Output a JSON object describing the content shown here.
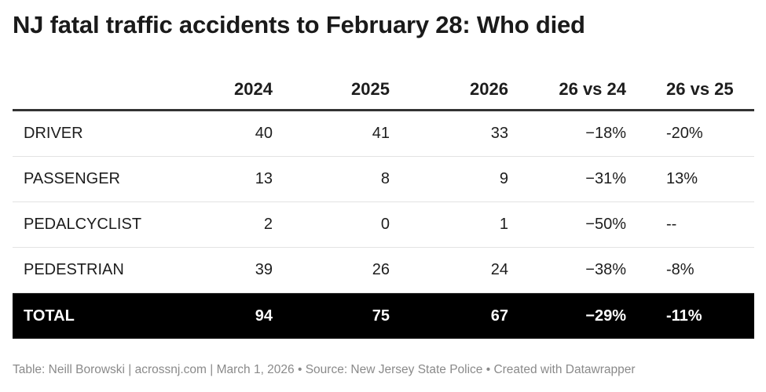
{
  "title": "NJ fatal traffic accidents to February 28: Who died",
  "chart_data": {
    "type": "table",
    "columns": [
      "",
      "2024",
      "2025",
      "2026",
      "26 vs 24",
      "26 vs 25"
    ],
    "rows": [
      {
        "label": "DRIVER",
        "y2024": "40",
        "y2025": "41",
        "y2026": "33",
        "vs24": "−18%",
        "vs25": "-20%"
      },
      {
        "label": "PASSENGER",
        "y2024": "13",
        "y2025": "8",
        "y2026": "9",
        "vs24": "−31%",
        "vs25": "13%"
      },
      {
        "label": "PEDALCYCLIST",
        "y2024": "2",
        "y2025": "0",
        "y2026": "1",
        "vs24": "−50%",
        "vs25": "--"
      },
      {
        "label": "PEDESTRIAN",
        "y2024": "39",
        "y2025": "26",
        "y2026": "24",
        "vs24": "−38%",
        "vs25": "-8%"
      }
    ],
    "total": {
      "label": "TOTAL",
      "y2024": "94",
      "y2025": "75",
      "y2026": "67",
      "vs24": "−29%",
      "vs25": "-11%"
    }
  },
  "footer": "Table: Neill Borowski | acrossnj.com | March 1, 2026 • Source: New Jersey State Police • Created with Datawrapper",
  "colors": {
    "total_bg": "#000000",
    "header_rule": "#333333",
    "footer_text": "#8a8a8a"
  }
}
